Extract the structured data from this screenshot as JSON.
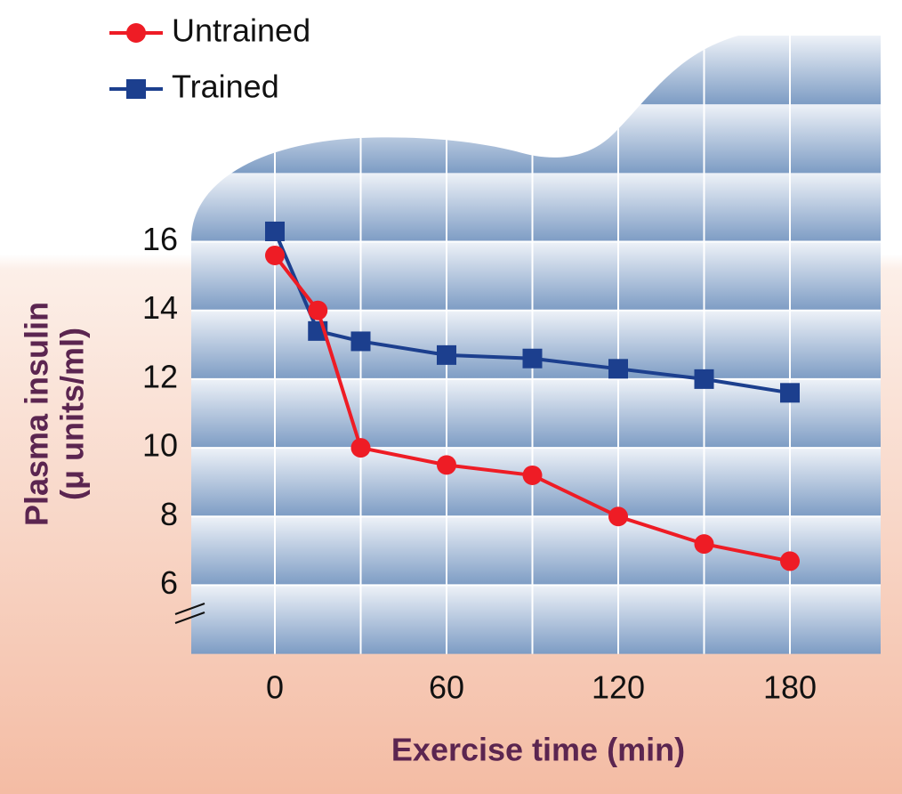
{
  "chart_data": {
    "type": "line",
    "x_label": "Exercise time (min)",
    "y_label": "Plasma insulin",
    "y_unit": "(μ units/ml)",
    "x": [
      0,
      15,
      30,
      60,
      90,
      120,
      150,
      180
    ],
    "series": [
      {
        "name": "Untrained",
        "color": "#ee1c25",
        "marker": "circle",
        "values": [
          15.6,
          14.0,
          10.0,
          9.5,
          9.2,
          8.0,
          7.2,
          6.7
        ]
      },
      {
        "name": "Trained",
        "color": "#1c3f8e",
        "marker": "square",
        "values": [
          16.3,
          13.4,
          13.1,
          12.7,
          12.6,
          12.3,
          12.0,
          11.6
        ]
      }
    ],
    "xlim": [
      -30,
      210
    ],
    "xticks": [
      0,
      60,
      120,
      180
    ],
    "ylim": [
      4,
      22
    ],
    "yticks": [
      6,
      8,
      10,
      12,
      14,
      16
    ],
    "grid": true,
    "legend": "upper left"
  }
}
